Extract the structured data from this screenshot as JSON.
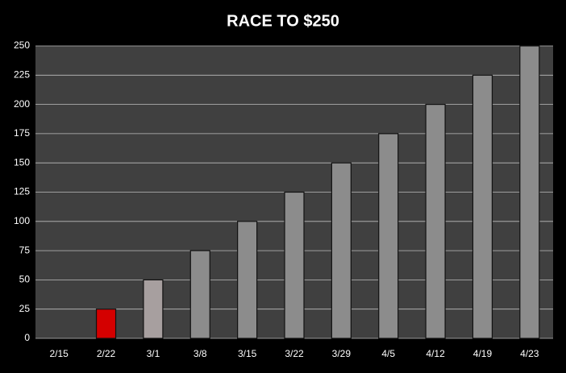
{
  "chart_data": {
    "type": "bar",
    "title": "RACE TO $250",
    "categories": [
      "2/15",
      "2/22",
      "3/1",
      "3/8",
      "3/15",
      "3/22",
      "3/29",
      "4/5",
      "4/12",
      "4/19",
      "4/23"
    ],
    "values": [
      0,
      25,
      50,
      75,
      100,
      125,
      150,
      175,
      200,
      225,
      250
    ],
    "colors": [
      "#8c8c8c",
      "#d40000",
      "#a79f9f",
      "#8c8c8c",
      "#8c8c8c",
      "#8c8c8c",
      "#8c8c8c",
      "#8c8c8c",
      "#8c8c8c",
      "#8c8c8c",
      "#8c8c8c"
    ],
    "ylim": [
      0,
      250
    ],
    "yticks": [
      0,
      25,
      50,
      75,
      100,
      125,
      150,
      175,
      200,
      225,
      250
    ],
    "grid": true
  }
}
